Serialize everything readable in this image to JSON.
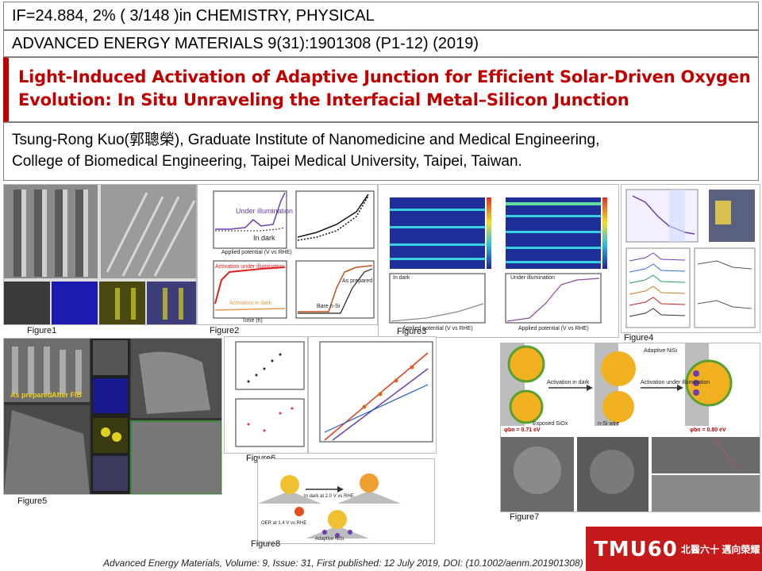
{
  "header": {
    "impact": "IF=24.884, 2% ( 3/148 )in CHEMISTRY, PHYSICAL",
    "journal": "ADVANCED ENERGY MATERIALS  9(31):1901308 (P1-12) (2019)",
    "title_line1": "Light-Induced Activation of Adaptive Junction for Efficient Solar-Driven Oxygen",
    "title_line2": "Evolution: In Situ Unraveling the Interfacial  Metal–Silicon Junction",
    "author_line1": "Tsung-Rong Kuo(郭聰榮), Graduate Institute of Nanomedicine and Medical Engineering,",
    "author_line2": "College of Biomedical Engineering, Taipei Medical University, Taipei, Taiwan."
  },
  "figures": {
    "f1": "Figure1",
    "f2": "Figure2",
    "f3": "Figure3",
    "f4": "Figure4",
    "f5": "Figure5",
    "f6": "Figure6",
    "f7": "Figure7",
    "f8": "Figure8"
  },
  "fig_text": {
    "f2_under": "Under illumination",
    "f2_dark": "In dark",
    "f2_act_ill": "Activation under illumination",
    "f2_act_dark": "Activation in dark",
    "f2_xlabel": "Applied potential (V vs RHE)",
    "f2_time": "Time (h)",
    "f2_as_prepared": "As prepared",
    "f2_bare": "Bare n-Si",
    "f3_dark": "In dark",
    "f3_ill": "Under illumination",
    "f3_xlabel": "Applied potential (V vs RHE)",
    "f5_as_prep": "As prepared",
    "f5_after_fib": "After FIB",
    "f7_activation_dark": "Activation in dark",
    "f7_activation_ill": "Activation under illumination",
    "f7_adaptive": "Adaptive NiSi",
    "f7_exposed": "Exposed SiOx",
    "f7_nsi": "n-Si wire",
    "f7_phi1": "φbn = 0.71 eV",
    "f7_phi2": "φbn = 0.80 eV",
    "f8_dark": "In dark at 2.0 V vs RHE",
    "f8_oer": "OER at 1.4 V vs RHE",
    "f8_adaptive": "Adaptive NiSi"
  },
  "footer": "Advanced Energy Materials, Volume: 9, Issue: 31, First published: 12 July 2019, DOI: (10.1002/aenm.201901308)",
  "logo": {
    "text": "TMU60",
    "sub": "北醫六十 邁向榮耀"
  }
}
